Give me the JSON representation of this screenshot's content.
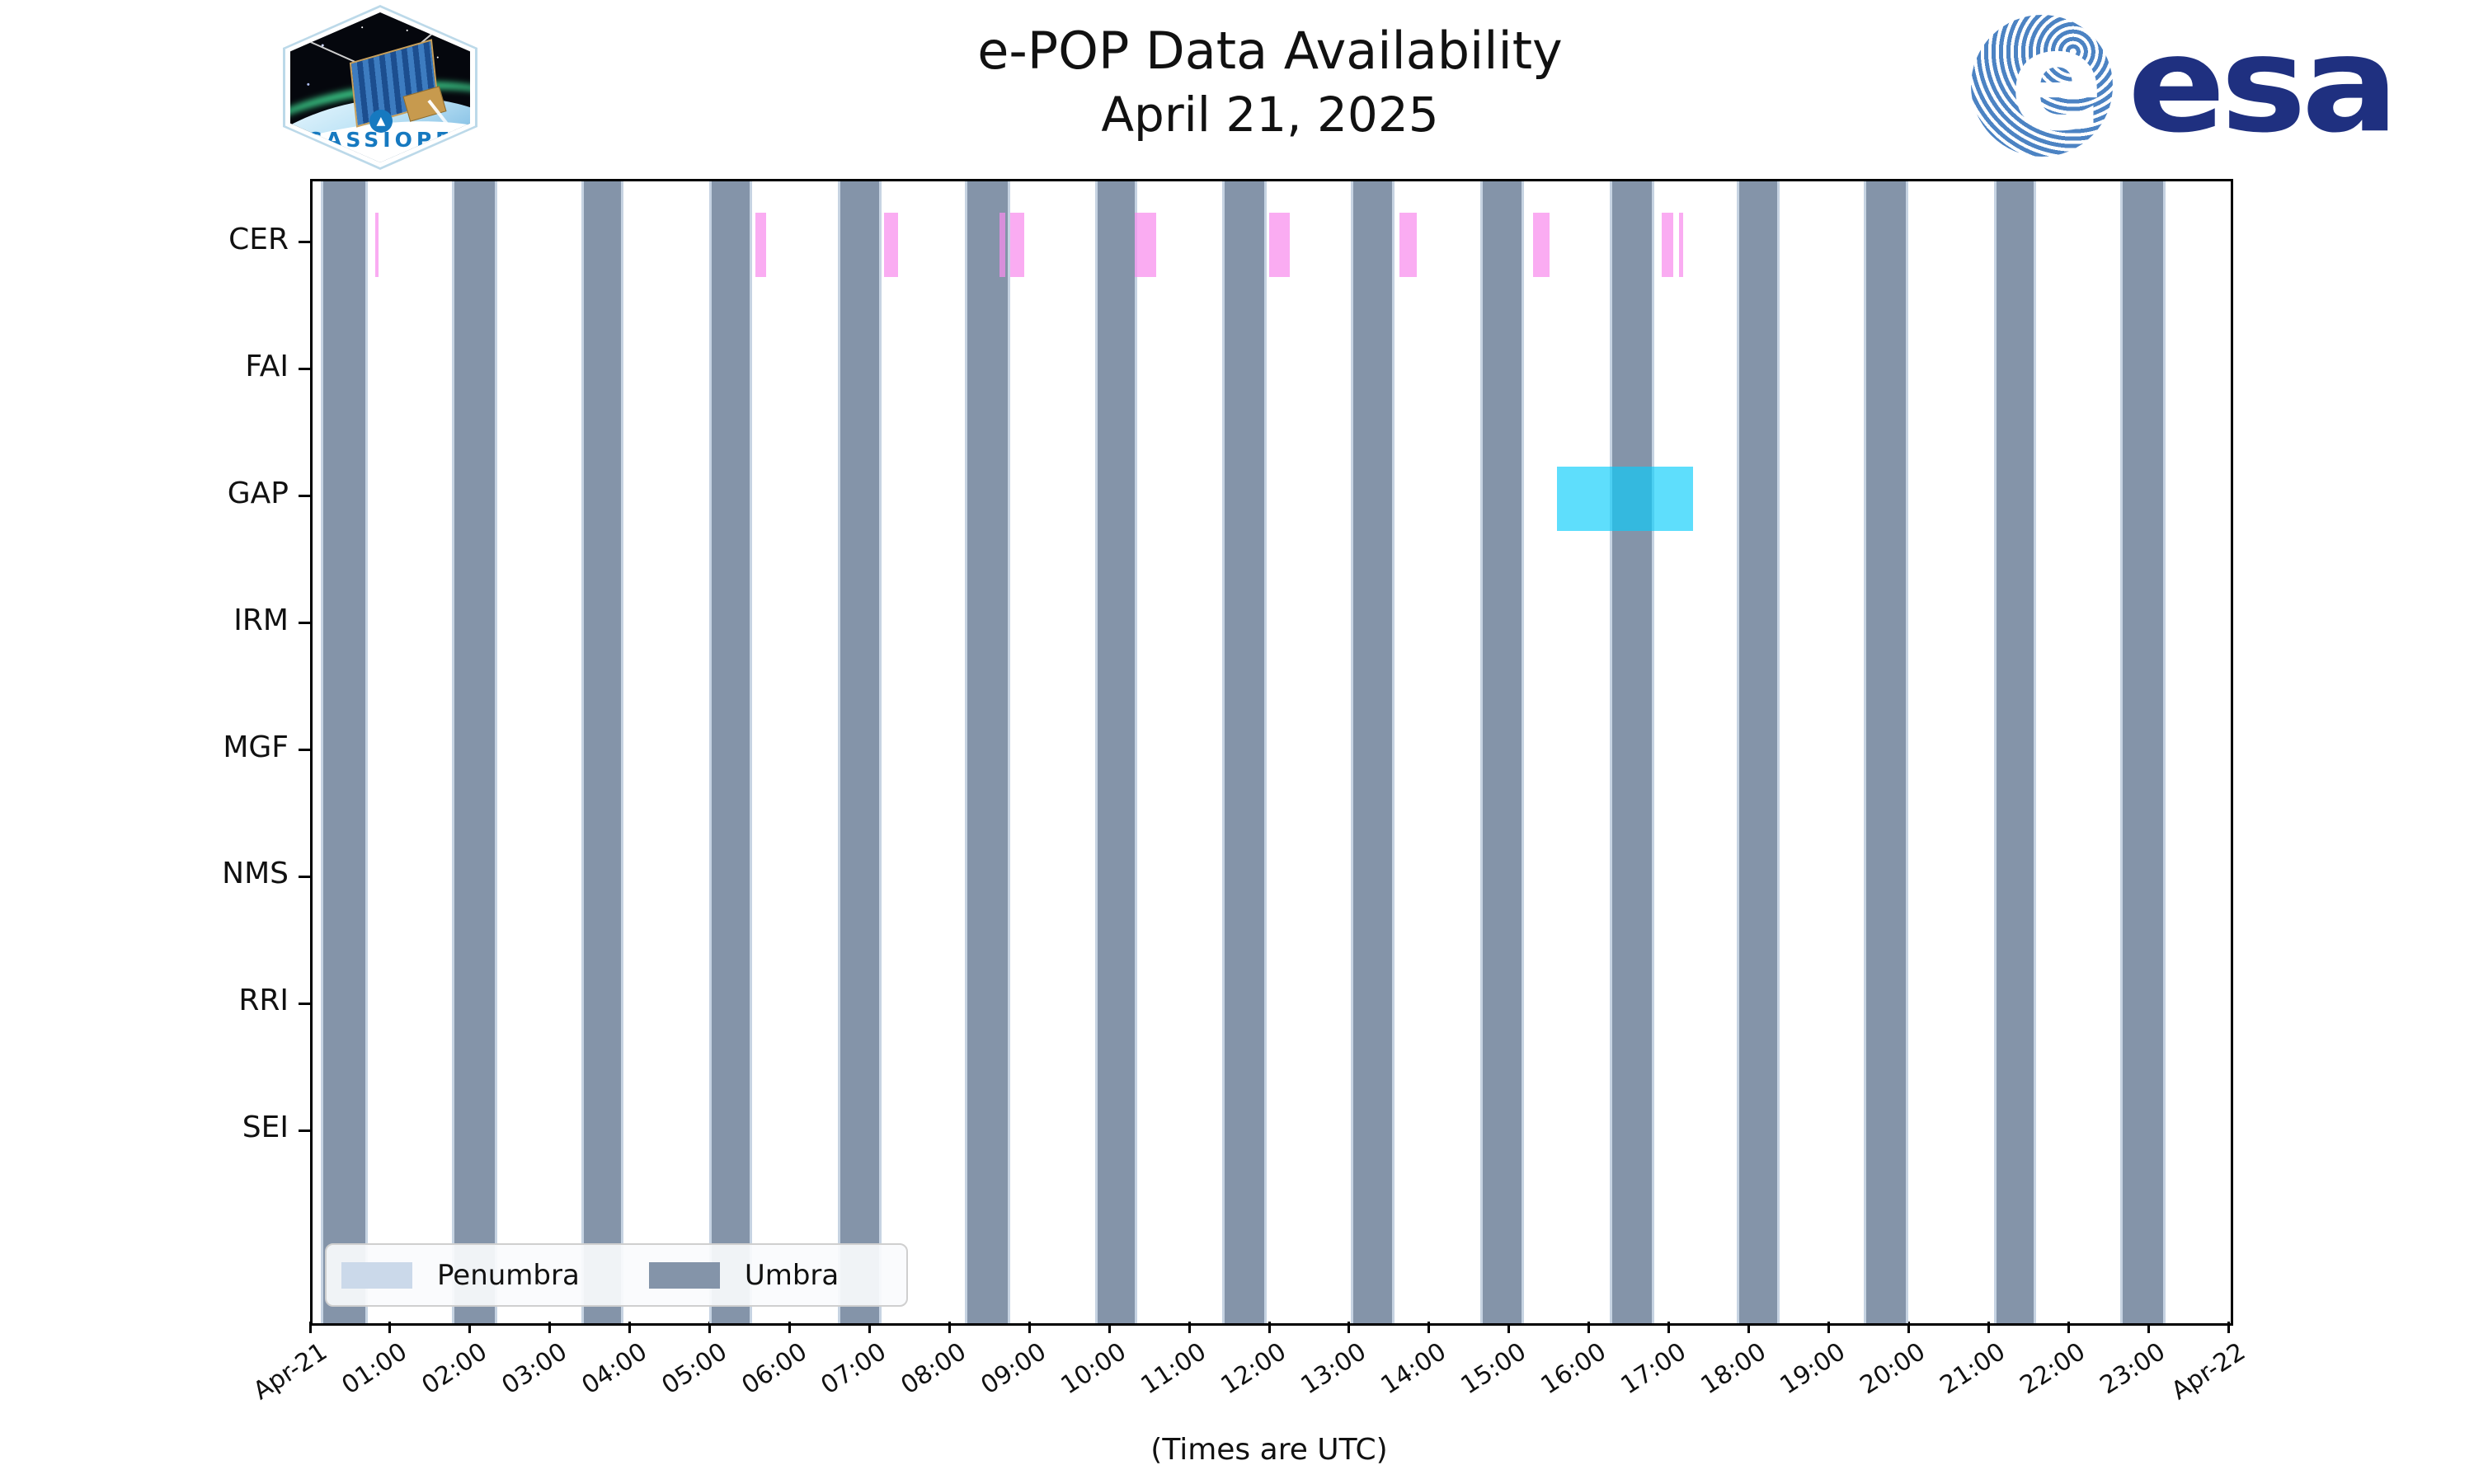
{
  "header": {
    "title_line1": "e-POP Data Availability",
    "title_line2": "April 21, 2025",
    "cassiope_patch_label": "CASSIOPE",
    "esa_wordmark": "esa",
    "esa_globe_letter": "e"
  },
  "chart_data": {
    "type": "bar",
    "subtype": "gantt-availability-timeline",
    "title": "e-POP Data Availability",
    "subtitle": "April 21, 2025",
    "xlabel": "(Times are UTC)",
    "ylabel": "",
    "grid": false,
    "legend_position": "lower-left",
    "x_axis": {
      "start_label": "Apr-21",
      "end_label": "Apr-22",
      "hours_range": [
        0,
        24
      ],
      "tick_labels": [
        "Apr-21",
        "01:00",
        "02:00",
        "03:00",
        "04:00",
        "05:00",
        "06:00",
        "07:00",
        "08:00",
        "09:00",
        "10:00",
        "11:00",
        "12:00",
        "13:00",
        "14:00",
        "15:00",
        "16:00",
        "17:00",
        "18:00",
        "19:00",
        "20:00",
        "21:00",
        "22:00",
        "23:00",
        "Apr-22"
      ]
    },
    "categories": [
      "CER",
      "FAI",
      "GAP",
      "IRM",
      "MGF",
      "NMS",
      "RRI",
      "SEI"
    ],
    "legend": [
      {
        "label": "Penumbra",
        "color": "#CBD9EA"
      },
      {
        "label": "Umbra",
        "color": "#8494A9"
      }
    ],
    "umbra_color": "#8494A9",
    "penumbra_edge_color": "#C6D3E2",
    "umbra_intervals_hours": [
      [
        0.1,
        0.69
      ],
      [
        1.74,
        2.31
      ],
      [
        3.36,
        3.89
      ],
      [
        4.96,
        5.5
      ],
      [
        6.57,
        7.12
      ],
      [
        8.16,
        8.73
      ],
      [
        9.79,
        10.32
      ],
      [
        11.38,
        11.94
      ],
      [
        12.99,
        13.54
      ],
      [
        14.61,
        15.16
      ],
      [
        16.23,
        16.79
      ],
      [
        17.82,
        18.36
      ],
      [
        19.41,
        19.97
      ],
      [
        21.04,
        21.57
      ],
      [
        22.62,
        23.18
      ]
    ],
    "series": [
      {
        "name": "CER availability",
        "row": "CER",
        "color": "rgba(248,140,237,0.72)",
        "intervals_hours": [
          [
            0.78,
            0.83
          ],
          [
            5.54,
            5.68
          ],
          [
            7.15,
            7.33
          ],
          [
            8.59,
            8.67
          ],
          [
            8.73,
            8.9
          ],
          [
            10.29,
            10.56
          ],
          [
            11.97,
            12.23
          ],
          [
            13.6,
            13.82
          ],
          [
            15.27,
            15.48
          ],
          [
            16.88,
            17.03
          ],
          [
            17.1,
            17.15
          ]
        ]
      },
      {
        "name": "GAP availability",
        "row": "GAP",
        "color": "rgba(10,205,250,0.66)",
        "intervals_hours": [
          [
            15.57,
            17.27
          ]
        ]
      }
    ]
  },
  "colors": {
    "background": "#FFFFFF",
    "axis": "#000000",
    "esa_navy": "#1F3080",
    "esa_globe_stripe": "#4C83C3",
    "cassiope_text": "#1679C0"
  }
}
